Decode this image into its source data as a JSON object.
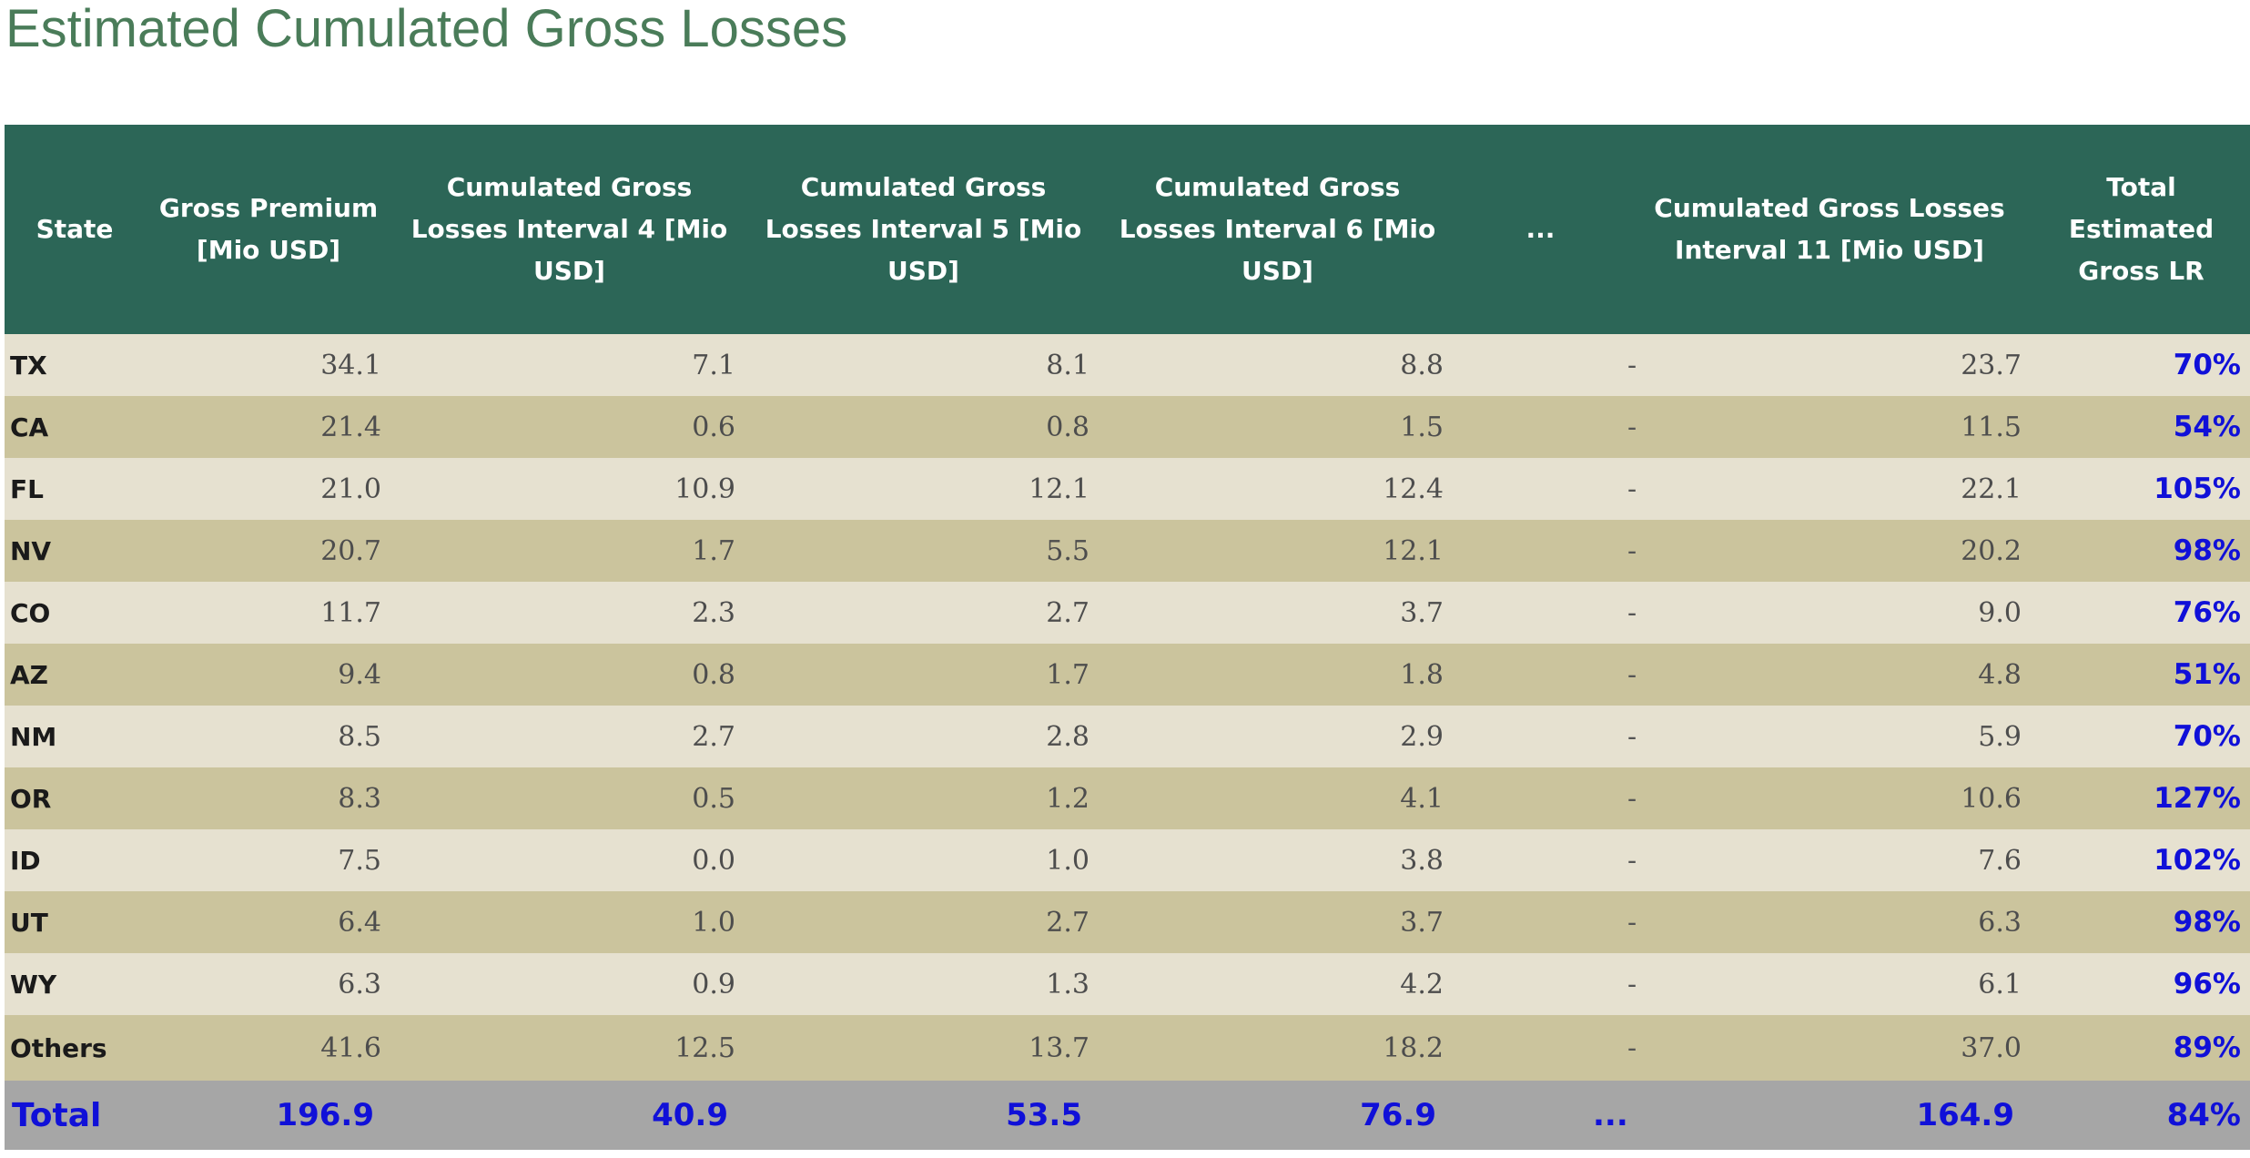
{
  "title": "Estimated Cumulated Gross Losses",
  "table": {
    "headers": [
      "State",
      "Gross Premium [Mio USD]",
      "Cumulated Gross Losses Interval 4 [Mio USD]",
      "Cumulated Gross Losses Interval 5 [Mio USD]",
      "Cumulated Gross Losses Interval 6 [Mio USD]",
      "...",
      "Cumulated Gross Losses Interval 11 [Mio USD]",
      "Total Estimated Gross LR"
    ],
    "rows": [
      {
        "state": "TX",
        "premium": "34.1",
        "i4": "7.1",
        "i5": "8.1",
        "i6": "8.8",
        "gap": "-",
        "i11": "23.7",
        "lr": "70%"
      },
      {
        "state": "CA",
        "premium": "21.4",
        "i4": "0.6",
        "i5": "0.8",
        "i6": "1.5",
        "gap": "-",
        "i11": "11.5",
        "lr": "54%"
      },
      {
        "state": "FL",
        "premium": "21.0",
        "i4": "10.9",
        "i5": "12.1",
        "i6": "12.4",
        "gap": "-",
        "i11": "22.1",
        "lr": "105%"
      },
      {
        "state": "NV",
        "premium": "20.7",
        "i4": "1.7",
        "i5": "5.5",
        "i6": "12.1",
        "gap": "-",
        "i11": "20.2",
        "lr": "98%"
      },
      {
        "state": "CO",
        "premium": "11.7",
        "i4": "2.3",
        "i5": "2.7",
        "i6": "3.7",
        "gap": "-",
        "i11": "9.0",
        "lr": "76%"
      },
      {
        "state": "AZ",
        "premium": "9.4",
        "i4": "0.8",
        "i5": "1.7",
        "i6": "1.8",
        "gap": "-",
        "i11": "4.8",
        "lr": "51%"
      },
      {
        "state": "NM",
        "premium": "8.5",
        "i4": "2.7",
        "i5": "2.8",
        "i6": "2.9",
        "gap": "-",
        "i11": "5.9",
        "lr": "70%"
      },
      {
        "state": "OR",
        "premium": "8.3",
        "i4": "0.5",
        "i5": "1.2",
        "i6": "4.1",
        "gap": "-",
        "i11": "10.6",
        "lr": "127%"
      },
      {
        "state": "ID",
        "premium": "7.5",
        "i4": "0.0",
        "i5": "1.0",
        "i6": "3.8",
        "gap": "-",
        "i11": "7.6",
        "lr": "102%"
      },
      {
        "state": "UT",
        "premium": "6.4",
        "i4": "1.0",
        "i5": "2.7",
        "i6": "3.7",
        "gap": "-",
        "i11": "6.3",
        "lr": "98%"
      },
      {
        "state": "WY",
        "premium": "6.3",
        "i4": "0.9",
        "i5": "1.3",
        "i6": "4.2",
        "gap": "-",
        "i11": "6.1",
        "lr": "96%"
      },
      {
        "state": "Others",
        "premium": "41.6",
        "i4": "12.5",
        "i5": "13.7",
        "i6": "18.2",
        "gap": "-",
        "i11": "37.0",
        "lr": "89%"
      }
    ],
    "total": {
      "state": "Total",
      "premium": "196.9",
      "i4": "40.9",
      "i5": "53.5",
      "i6": "76.9",
      "gap": "...",
      "i11": "164.9",
      "lr": "84%"
    }
  },
  "colors": {
    "title": "#4a7c59",
    "header_bg": "#2c6657",
    "row_light": "#e6e1d0",
    "row_dark": "#cbc49d",
    "total_bg": "#a6a6a6",
    "highlight_text": "#1010d8"
  }
}
